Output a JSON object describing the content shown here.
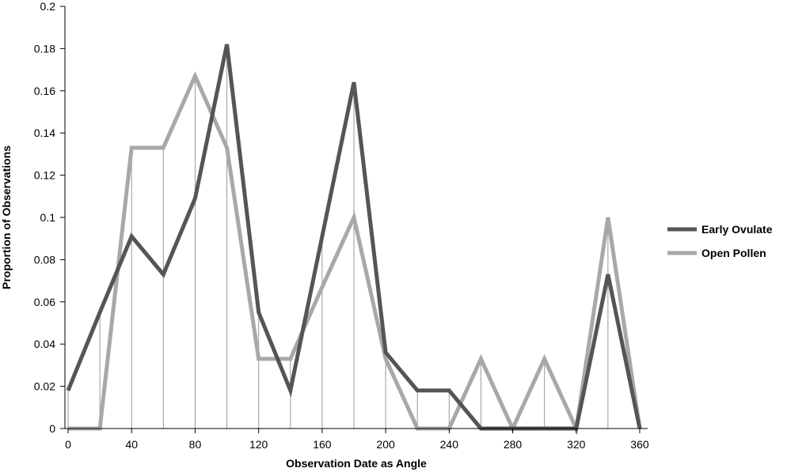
{
  "chart_data": {
    "type": "line",
    "title": "",
    "xlabel": "Observation Date as Angle",
    "ylabel": "Proportion of Observations",
    "xlim": [
      -2,
      365
    ],
    "ylim": [
      0,
      0.2
    ],
    "x_ticks": [
      0,
      40,
      80,
      120,
      160,
      200,
      240,
      280,
      320,
      360
    ],
    "x_tick_labels": [
      "0",
      "40",
      "80",
      "120",
      "160",
      "200",
      "240",
      "280",
      "320",
      "360"
    ],
    "y_ticks": [
      0,
      0.02,
      0.04,
      0.06,
      0.08,
      0.1,
      0.12,
      0.14,
      0.16,
      0.18,
      0.2
    ],
    "y_tick_labels": [
      "0",
      "0.02",
      "0.04",
      "0.06",
      "0.08",
      "0.1",
      "0.12",
      "0.14",
      "0.16",
      "0.18",
      "0.2"
    ],
    "x": [
      0,
      20,
      40,
      60,
      80,
      100,
      120,
      140,
      160,
      180,
      200,
      220,
      240,
      260,
      280,
      300,
      320,
      340,
      360
    ],
    "drop_lines": true,
    "grid": false,
    "legend_position": "right",
    "series": [
      {
        "name": "Early Ovulate",
        "color": "#555555",
        "values": [
          0.018,
          0.055,
          0.091,
          0.073,
          0.109,
          0.182,
          0.055,
          0.018,
          0.091,
          0.164,
          0.036,
          0.018,
          0.018,
          0,
          0,
          0,
          0,
          0.073,
          0
        ]
      },
      {
        "name": "Open Pollen",
        "color": "#a8a8a8",
        "values": [
          0,
          0,
          0.133,
          0.133,
          0.167,
          0.133,
          0.033,
          0.033,
          0.067,
          0.1,
          0.033,
          0,
          0,
          0.033,
          0,
          0.033,
          0,
          0.1,
          0
        ]
      }
    ]
  }
}
